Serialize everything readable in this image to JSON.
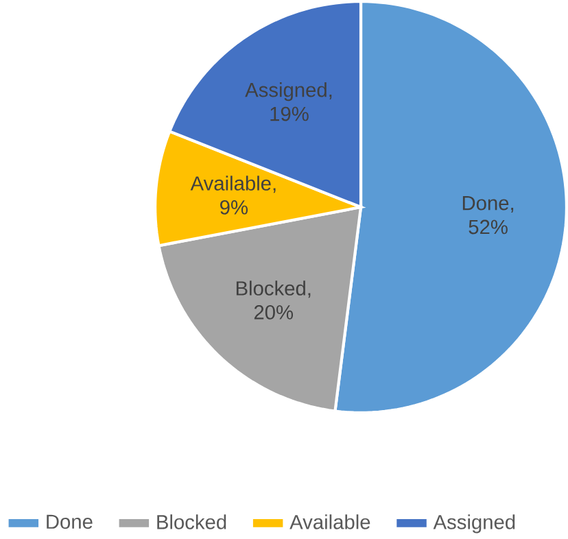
{
  "chart_data": {
    "type": "pie",
    "categories": [
      "Done",
      "Blocked",
      "Available",
      "Assigned"
    ],
    "values": [
      52,
      20,
      9,
      19
    ],
    "colors": [
      "#5b9bd5",
      "#a5a5a5",
      "#ffc000",
      "#4472c4"
    ],
    "value_labels": [
      "Done, 52%",
      "Blocked, 20%",
      "Available, 9%",
      "Assigned, 19%"
    ],
    "legend": "bottom"
  }
}
